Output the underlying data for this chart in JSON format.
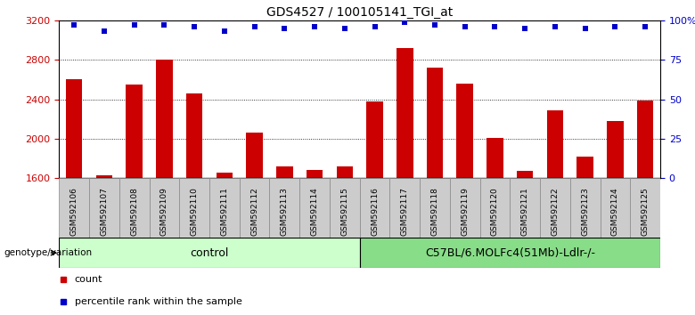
{
  "title": "GDS4527 / 100105141_TGI_at",
  "samples": [
    "GSM592106",
    "GSM592107",
    "GSM592108",
    "GSM592109",
    "GSM592110",
    "GSM592111",
    "GSM592112",
    "GSM592113",
    "GSM592114",
    "GSM592115",
    "GSM592116",
    "GSM592117",
    "GSM592118",
    "GSM592119",
    "GSM592120",
    "GSM592121",
    "GSM592122",
    "GSM592123",
    "GSM592124",
    "GSM592125"
  ],
  "counts": [
    2600,
    1630,
    2550,
    2800,
    2460,
    1650,
    2060,
    1720,
    1680,
    1720,
    2380,
    2920,
    2720,
    2560,
    2010,
    1670,
    2285,
    1820,
    2180,
    2390
  ],
  "percentile_ranks": [
    97,
    93,
    97,
    97,
    96,
    93,
    96,
    95,
    96,
    95,
    96,
    99,
    97,
    96,
    96,
    95,
    96,
    95,
    96,
    96
  ],
  "n_control": 10,
  "n_treatment": 10,
  "control_label": "control",
  "treatment_label": "C57BL/6.MOLFc4(51Mb)-Ldlr-/-",
  "control_color": "#ccffcc",
  "treatment_color": "#88dd88",
  "bar_color": "#cc0000",
  "dot_color": "#0000cc",
  "ylim_left": [
    1600,
    3200
  ],
  "ylim_right": [
    0,
    100
  ],
  "yticks_left": [
    1600,
    2000,
    2400,
    2800,
    3200
  ],
  "yticks_right": [
    0,
    25,
    50,
    75,
    100
  ],
  "grid_values": [
    2000,
    2400,
    2800
  ],
  "background_color": "#ffffff",
  "tick_bg_color": "#cccccc",
  "legend_count_label": "count",
  "legend_pct_label": "percentile rank within the sample",
  "genotype_label": "genotype/variation"
}
